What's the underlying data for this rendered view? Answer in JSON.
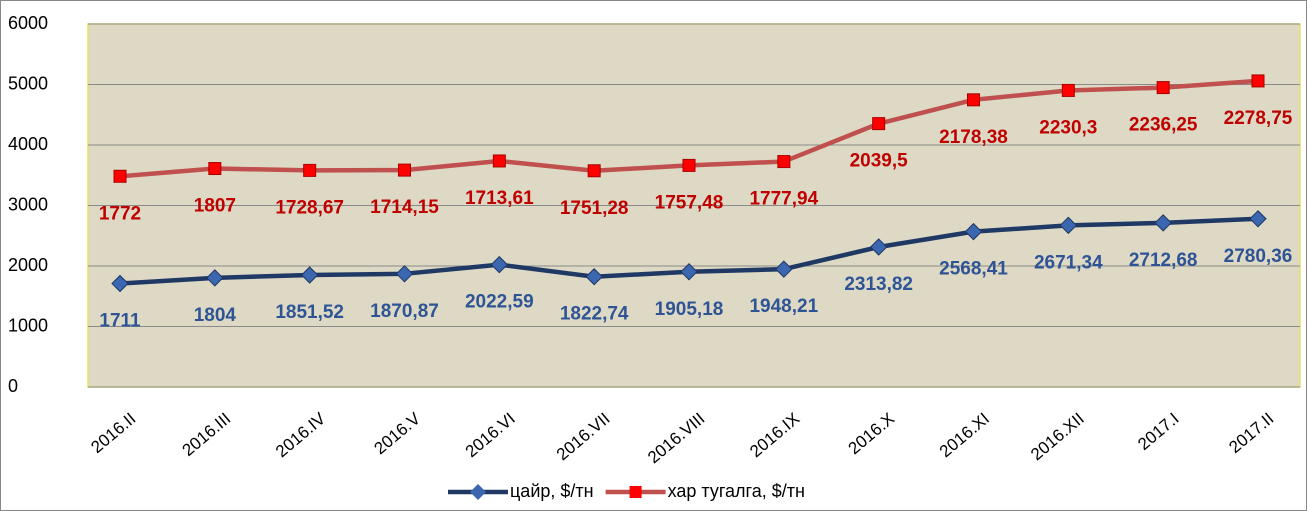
{
  "chart_data": {
    "type": "stacked_line",
    "categories": [
      "2016.II",
      "2016.III",
      "2016.IV",
      "2016.V",
      "2016.VI",
      "2016.VII",
      "2016.VIII",
      "2016.IX",
      "2016.X",
      "2016.XI",
      "2016.XII",
      "2017.I",
      "2017.II"
    ],
    "series": [
      {
        "name": "цайр, $/тн",
        "color": "#1f3864",
        "marker_color": "#3a67b0",
        "label_color": "#2f5496",
        "values": [
          1711,
          1804,
          1851.52,
          1870.87,
          2022.59,
          1822.74,
          1905.18,
          1948.21,
          2313.82,
          2568.41,
          2671.34,
          2712.68,
          2780.36
        ],
        "value_labels": [
          "1711",
          "1804",
          "1851,52",
          "1870,87",
          "2022,59",
          "1822,74",
          "1905,18",
          "1948,21",
          "2313,82",
          "2568,41",
          "2671,34",
          "2712,68",
          "2780,36"
        ]
      },
      {
        "name": "хар тугалга, $/тн",
        "color": "#c0504d",
        "marker_color": "#ff0000",
        "label_color": "#c00000",
        "values": [
          1772,
          1807,
          1728.67,
          1714.15,
          1713.61,
          1751.28,
          1757.48,
          1777.94,
          2039.5,
          2178.38,
          2230.3,
          2236.25,
          2278.75
        ],
        "value_labels": [
          "1772",
          "1807",
          "1728,67",
          "1714,15",
          "1713,61",
          "1751,28",
          "1757,48",
          "1777,94",
          "2039,5",
          "2178,38",
          "2230,3",
          "2236,25",
          "2278,75"
        ]
      }
    ],
    "ylim": [
      0,
      6000
    ],
    "yticks": [
      0,
      1000,
      2000,
      3000,
      4000,
      5000,
      6000
    ],
    "grid": true,
    "legend": "bottom"
  }
}
